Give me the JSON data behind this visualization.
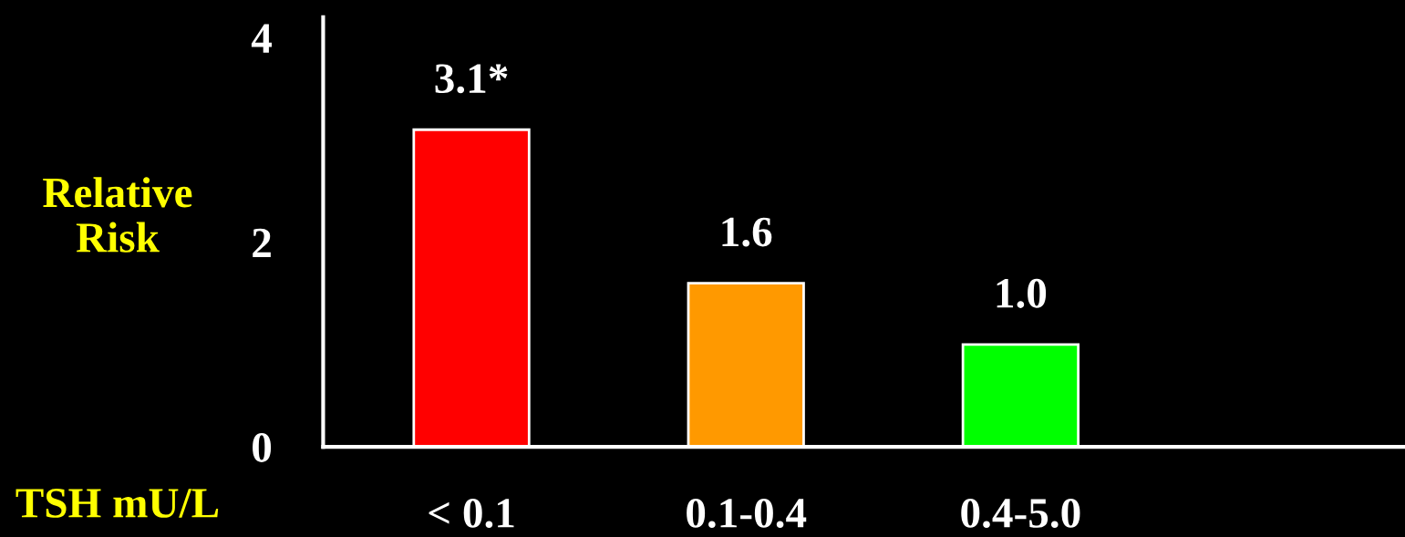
{
  "chart_data": {
    "type": "bar",
    "xlabel": "TSH mU/L",
    "ylabel": "Relative\nRisk",
    "categories": [
      "< 0.1",
      "0.1-0.4",
      "0.4-5.0"
    ],
    "values": [
      3.1,
      1.6,
      1.0
    ],
    "colors": [
      "#ff0000",
      "#ff9900",
      "#00ff00"
    ],
    "value_labels": [
      "3.1*",
      "1.6",
      "1.0"
    ],
    "ylim": [
      0,
      4.2
    ],
    "yticks": [
      0,
      2,
      4
    ]
  }
}
